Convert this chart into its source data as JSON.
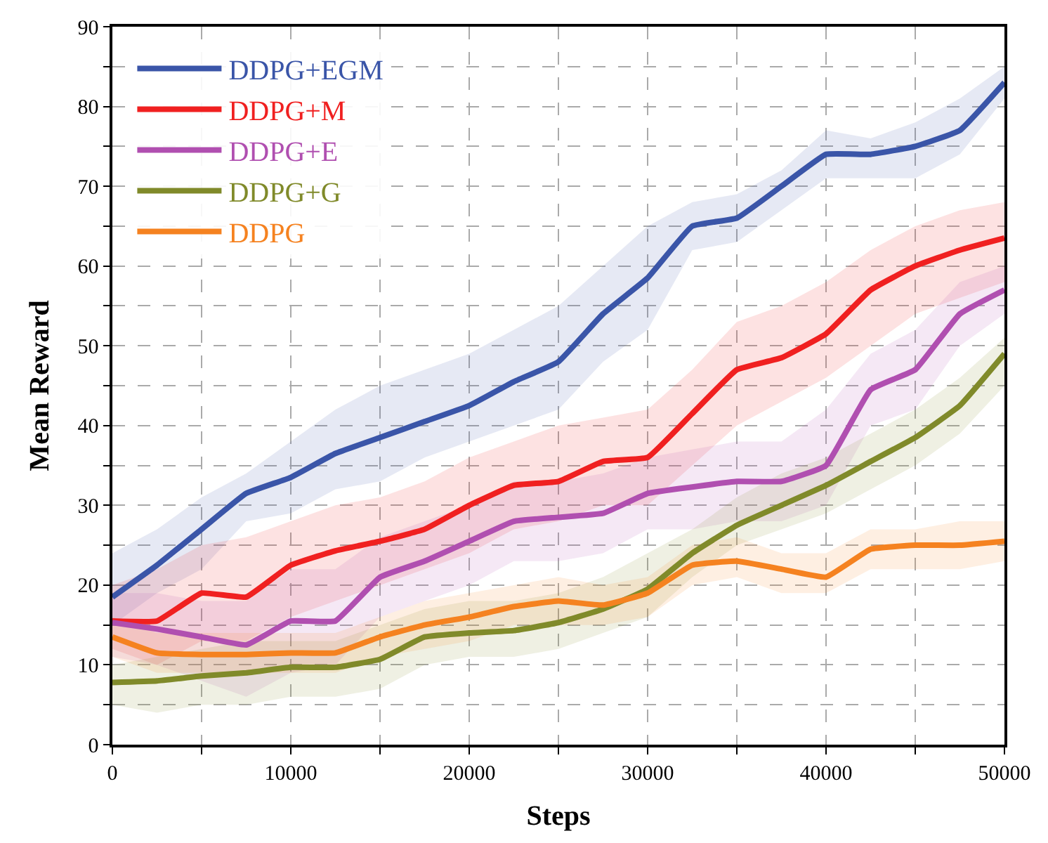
{
  "chart_data": {
    "type": "line",
    "xlabel": "Steps",
    "ylabel": "Mean Reward",
    "x": [
      0,
      2500,
      5000,
      7500,
      10000,
      12500,
      15000,
      17500,
      20000,
      22500,
      25000,
      27500,
      30000,
      32500,
      35000,
      37500,
      40000,
      42500,
      45000,
      47500,
      50000
    ],
    "series": [
      {
        "name": "DDPG+EGM",
        "color": "#3a55a8",
        "values": [
          18.5,
          22.5,
          27,
          31.5,
          33.5,
          36.5,
          38.5,
          40.5,
          42.5,
          45.5,
          48,
          54,
          58.5,
          65,
          66,
          70,
          74,
          74,
          75,
          77,
          83
        ],
        "lower": [
          15,
          19,
          22,
          28,
          29,
          32,
          33,
          36,
          38,
          40,
          42,
          48,
          52,
          62,
          63,
          67,
          71,
          71,
          71,
          74,
          81
        ],
        "upper": [
          24,
          27,
          31,
          34,
          38,
          42,
          45,
          47,
          49,
          52,
          55,
          60,
          65,
          68,
          69,
          72,
          77,
          76,
          78,
          81,
          85
        ]
      },
      {
        "name": "DDPG+M",
        "color": "#f02020",
        "values": [
          15.5,
          15.5,
          19,
          18.5,
          22.5,
          24.3,
          25.5,
          27,
          30,
          32.5,
          33,
          35.5,
          36,
          41.5,
          47,
          48.5,
          51.5,
          57,
          60,
          62,
          63.5
        ],
        "lower": [
          12,
          10,
          13,
          13,
          16,
          18,
          20,
          22,
          24,
          27,
          28,
          30,
          30,
          35,
          40,
          43,
          46,
          50,
          54,
          56,
          58
        ],
        "upper": [
          20,
          22,
          25,
          26,
          28,
          30,
          31,
          33,
          36,
          38,
          40,
          41,
          42,
          47,
          53,
          55,
          58,
          62,
          65,
          67,
          68
        ]
      },
      {
        "name": "DDPG+E",
        "color": "#b04fb0",
        "values": [
          15.3,
          14.5,
          13.5,
          12.5,
          15.5,
          15.5,
          21,
          23,
          25.5,
          28,
          28.5,
          29,
          31.5,
          32.3,
          33,
          33,
          35,
          44.5,
          47,
          54,
          57
        ],
        "lower": [
          11,
          10,
          8,
          6,
          9,
          10,
          16,
          18,
          20,
          23,
          23,
          24,
          27,
          27,
          28,
          28,
          30,
          40,
          42,
          50,
          54
        ],
        "upper": [
          19,
          19,
          18,
          18,
          22,
          22,
          26,
          28,
          30,
          33,
          33,
          34,
          36,
          37,
          38,
          38,
          42,
          49,
          52,
          58,
          60
        ]
      },
      {
        "name": "DDPG+G",
        "color": "#808a2a",
        "values": [
          7.8,
          8,
          8.6,
          9,
          9.7,
          9.7,
          10.7,
          13.5,
          14,
          14.3,
          15.3,
          17,
          19.5,
          24,
          27.5,
          30,
          32.5,
          35.5,
          38.5,
          42.5,
          49
        ],
        "lower": [
          5,
          4,
          5,
          5,
          6,
          6,
          7,
          10,
          11,
          11,
          12,
          14,
          16,
          21,
          25,
          27,
          29,
          32,
          35,
          39,
          45
        ],
        "upper": [
          10,
          11,
          12,
          13,
          13,
          13,
          15,
          17,
          18,
          18,
          19,
          21,
          24,
          27,
          31,
          34,
          36,
          39,
          42,
          46,
          51
        ]
      },
      {
        "name": "DDPG",
        "color": "#f58220",
        "values": [
          13.5,
          11.5,
          11.3,
          11.3,
          11.5,
          11.5,
          13.5,
          15,
          16,
          17.3,
          18,
          17.5,
          19,
          22.5,
          23,
          22,
          21,
          24.5,
          25,
          25,
          25.5
        ],
        "lower": [
          11,
          9,
          9,
          9,
          9,
          9,
          11,
          12,
          13,
          15,
          15,
          15,
          16,
          20,
          21,
          19,
          19,
          22,
          22,
          22,
          23
        ],
        "upper": [
          16,
          14,
          14,
          14,
          14,
          14,
          16,
          18,
          19,
          20,
          21,
          20,
          21,
          25,
          26,
          24,
          24,
          27,
          27,
          28,
          28
        ]
      }
    ],
    "xlim": [
      0,
      50000
    ],
    "xticks": [
      0,
      {
        "value": 5000,
        "label": null
      },
      10000,
      {
        "value": 15000,
        "label": null
      },
      20000,
      {
        "value": 25000,
        "label": null
      },
      30000,
      {
        "value": 35000,
        "label": null
      },
      40000,
      {
        "value": 45000,
        "label": null
      },
      50000
    ],
    "ylim": [
      0,
      90
    ],
    "yticks": [
      0,
      {
        "value": 5,
        "label": null
      },
      10,
      {
        "value": 15,
        "label": null
      },
      20,
      {
        "value": 25,
        "label": null
      },
      30,
      {
        "value": 35,
        "label": null
      },
      40,
      {
        "value": 45,
        "label": null
      },
      50,
      {
        "value": 55,
        "label": null
      },
      60,
      {
        "value": 65,
        "label": null
      },
      70,
      {
        "value": 75,
        "label": null
      },
      80,
      {
        "value": 85,
        "label": null
      },
      90
    ],
    "grid": true,
    "legend": "top left",
    "marker": "none",
    "line_style": "solid"
  }
}
